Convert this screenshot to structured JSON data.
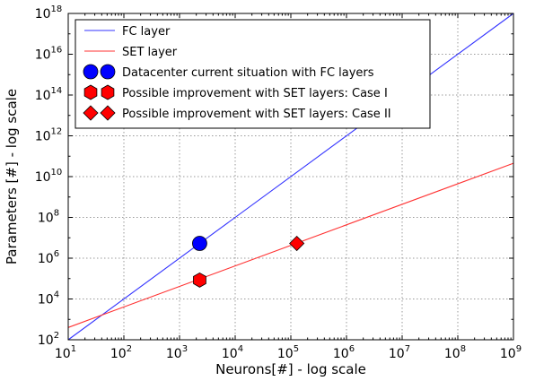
{
  "chart_data": {
    "type": "line",
    "title": "",
    "xlabel": "Neurons[#] - log scale",
    "ylabel": "Parameters [#] - log scale",
    "xscale": "log",
    "yscale": "log",
    "xlim": [
      10,
      1000000000
    ],
    "ylim": [
      100,
      1000000000000000000
    ],
    "x_tick_exponents": [
      1,
      2,
      3,
      4,
      5,
      6,
      7,
      8,
      9
    ],
    "y_tick_exponents": [
      2,
      4,
      6,
      8,
      10,
      12,
      14,
      16,
      18
    ],
    "tick_base": "10",
    "grid": true,
    "grid_style": "dotted",
    "legend_position": "top-left",
    "series": [
      {
        "name": "FC layer",
        "style": "line",
        "color": "#3333ff",
        "x": [
          10,
          1000000000
        ],
        "y": [
          100,
          1000000000000000000
        ]
      },
      {
        "name": "SET layer",
        "style": "line",
        "color": "#ff3333",
        "x": [
          10,
          1000000000
        ],
        "y": [
          400,
          45000000000
        ]
      },
      {
        "name": "Datacenter current situation with FC layers",
        "style": "marker",
        "marker": "circle",
        "color": "#0000ff",
        "x": [
          2300
        ],
        "y": [
          5300000
        ]
      },
      {
        "name": "Possible improvement with SET layers: Case I",
        "style": "marker",
        "marker": "hexagon",
        "color": "#ff0000",
        "x": [
          2300
        ],
        "y": [
          85000
        ]
      },
      {
        "name": "Possible improvement with SET layers: Case II",
        "style": "marker",
        "marker": "diamond",
        "color": "#ff0000",
        "x": [
          128000
        ],
        "y": [
          5300000
        ]
      }
    ]
  }
}
